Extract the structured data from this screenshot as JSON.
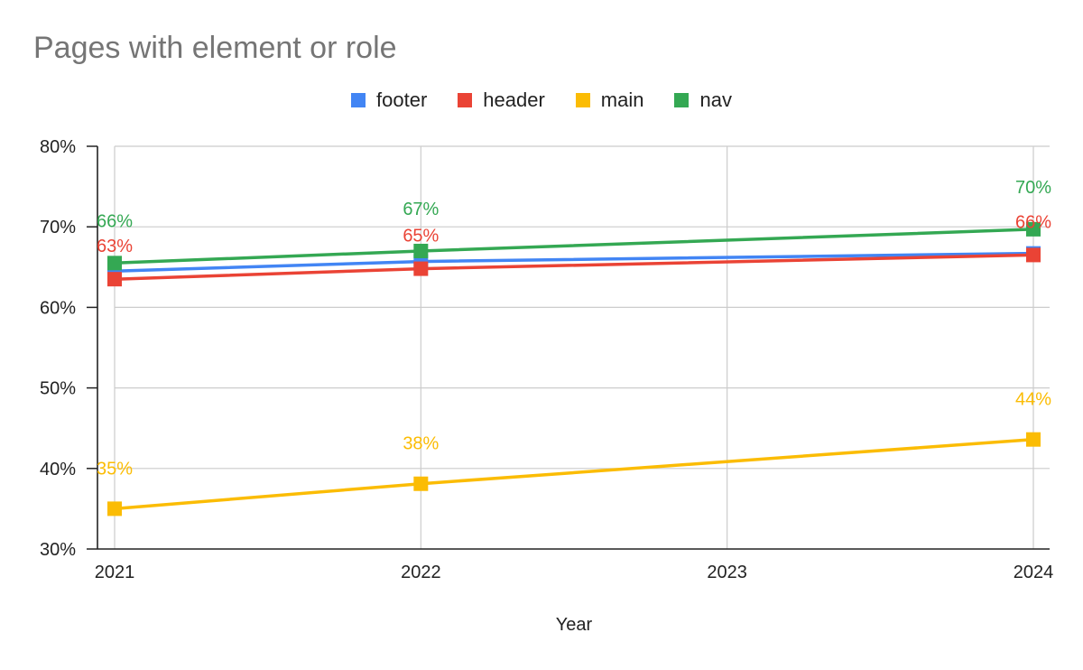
{
  "chart_data": {
    "type": "line",
    "title": "Pages with element or role",
    "xlabel": "Year",
    "ylabel": "",
    "x": [
      2021,
      2022,
      2023,
      2024
    ],
    "x_tick_labels": [
      "2021",
      "2022",
      "2023",
      "2024"
    ],
    "ylim": [
      0.3,
      0.8
    ],
    "y_ticks": [
      0.3,
      0.4,
      0.5,
      0.6,
      0.7,
      0.8
    ],
    "y_tick_labels": [
      "30%",
      "40%",
      "50%",
      "60%",
      "70%",
      "80%"
    ],
    "grid": true,
    "legend_position": "top-center",
    "series": [
      {
        "name": "footer",
        "color": "#4285F4",
        "points": [
          [
            2021,
            0.645
          ],
          [
            2022,
            0.657
          ],
          [
            2024,
            0.667
          ]
        ],
        "labels": [
          null,
          null,
          null
        ]
      },
      {
        "name": "header",
        "color": "#EA4335",
        "points": [
          [
            2021,
            0.635
          ],
          [
            2022,
            0.648
          ],
          [
            2024,
            0.665
          ]
        ],
        "labels": [
          "63%",
          "65%",
          "66%"
        ]
      },
      {
        "name": "main",
        "color": "#FBBC04",
        "points": [
          [
            2021,
            0.35
          ],
          [
            2022,
            0.381
          ],
          [
            2024,
            0.436
          ]
        ],
        "labels": [
          "35%",
          "38%",
          "44%"
        ]
      },
      {
        "name": "nav",
        "color": "#34A853",
        "points": [
          [
            2021,
            0.655
          ],
          [
            2022,
            0.67
          ],
          [
            2024,
            0.697
          ]
        ],
        "labels": [
          "66%",
          "67%",
          "70%"
        ]
      }
    ]
  }
}
